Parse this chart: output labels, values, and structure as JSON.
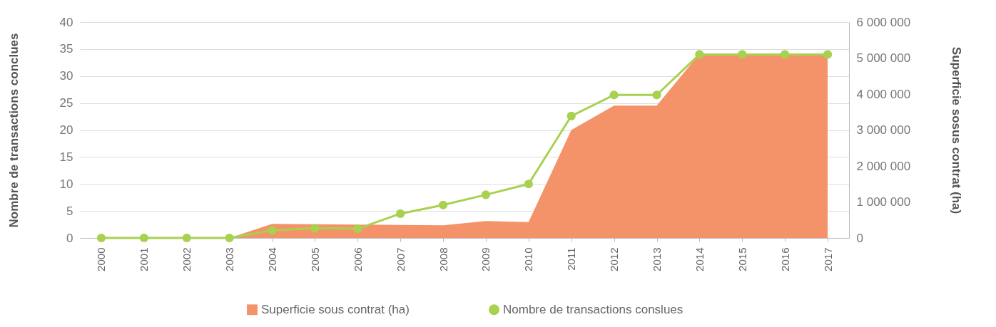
{
  "chart_data": {
    "type": "line",
    "categories": [
      "2000",
      "2001",
      "2002",
      "2003",
      "2004",
      "2005",
      "2006",
      "2007",
      "2008",
      "2009",
      "2010",
      "2011",
      "2012",
      "2013",
      "2014",
      "2015",
      "2016",
      "2017"
    ],
    "ylabel": "Nombre de transactions conclues",
    "y2label": "Superficie sosus contrat (ha)",
    "ylim": [
      0,
      40
    ],
    "yticks": [
      0,
      5,
      10,
      15,
      20,
      25,
      30,
      35,
      40
    ],
    "y2lim": [
      0,
      6000000
    ],
    "y2ticks": [
      0,
      1000000,
      2000000,
      3000000,
      4000000,
      5000000,
      6000000
    ],
    "grid": "y",
    "legend": "bottom",
    "series": [
      {
        "name": "Superficie sous contrat (ha)",
        "type": "area",
        "axis": "y2",
        "color": "#f4936a",
        "values": [
          0,
          0,
          0,
          0,
          390000,
          380000,
          370000,
          360000,
          350000,
          470000,
          440000,
          3000000,
          3680000,
          3680000,
          5120000,
          5120000,
          5120000,
          5120000
        ]
      },
      {
        "name": "Nombre de transactions conslues",
        "marker": "circle",
        "color": "#a8d14f",
        "values": [
          0,
          0,
          0,
          0,
          1.4,
          1.8,
          1.7,
          4.5,
          6.1,
          8,
          10,
          22.6,
          26.5,
          26.5,
          34,
          34,
          34,
          34
        ]
      }
    ]
  }
}
